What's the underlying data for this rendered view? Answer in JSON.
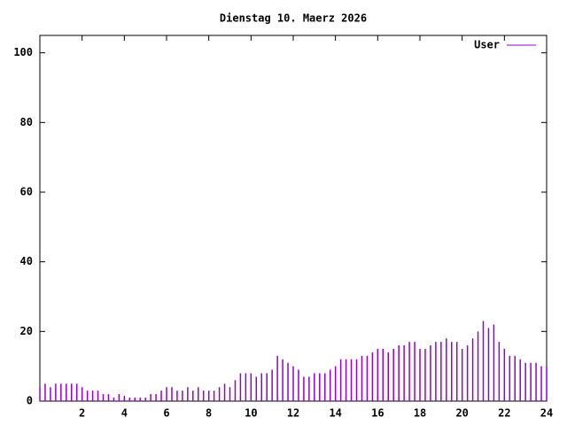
{
  "chart_data": {
    "type": "impulse",
    "title": "Dienstag 10. Maerz 2026",
    "x": [
      0,
      0.25,
      0.5,
      0.75,
      1,
      1.25,
      1.5,
      1.75,
      2,
      2.25,
      2.5,
      2.75,
      3,
      3.25,
      3.5,
      3.75,
      4,
      4.25,
      4.5,
      4.75,
      5,
      5.25,
      5.5,
      5.75,
      6,
      6.25,
      6.5,
      6.75,
      7,
      7.25,
      7.5,
      7.75,
      8,
      8.25,
      8.5,
      8.75,
      9,
      9.25,
      9.5,
      9.75,
      10,
      10.25,
      10.5,
      10.75,
      11,
      11.25,
      11.5,
      11.75,
      12,
      12.25,
      12.5,
      12.75,
      13,
      13.25,
      13.5,
      13.75,
      14,
      14.25,
      14.5,
      14.75,
      15,
      15.25,
      15.5,
      15.75,
      16,
      16.25,
      16.5,
      16.75,
      17,
      17.25,
      17.5,
      17.75,
      18,
      18.25,
      18.5,
      18.75,
      19,
      19.25,
      19.5,
      19.75,
      20,
      20.25,
      20.5,
      20.75,
      21,
      21.25,
      21.5,
      21.75,
      22,
      22.25,
      22.5,
      22.75,
      23,
      23.25,
      23.5,
      23.75,
      24
    ],
    "series": [
      {
        "name": "User",
        "color": "#9400d3",
        "values": [
          4,
          5,
          4,
          5,
          5,
          5,
          5,
          5,
          4,
          3,
          3,
          3,
          2,
          2,
          1,
          2,
          1,
          1,
          1,
          1,
          1,
          2,
          2,
          3,
          4,
          4,
          3,
          3,
          4,
          3,
          4,
          3,
          3,
          3,
          4,
          5,
          4,
          6,
          8,
          8,
          8,
          7,
          8,
          8,
          9,
          13,
          12,
          11,
          10,
          9,
          7,
          7,
          8,
          8,
          8,
          9,
          10,
          12,
          12,
          12,
          12,
          13,
          13,
          14,
          15,
          15,
          14,
          15,
          16,
          16,
          17,
          17,
          15,
          15,
          16,
          17,
          17,
          18,
          17,
          17,
          15,
          16,
          18,
          20,
          23,
          21,
          22,
          17,
          15,
          13,
          13,
          12,
          11,
          11,
          11,
          10,
          10
        ]
      }
    ],
    "xlim": [
      0,
      24
    ],
    "xticks": [
      2,
      4,
      6,
      8,
      10,
      12,
      14,
      16,
      18,
      20,
      22,
      24
    ],
    "ylim": [
      0,
      105
    ],
    "yticks": [
      0,
      20,
      40,
      60,
      80,
      100
    ],
    "legend": "upper right"
  }
}
